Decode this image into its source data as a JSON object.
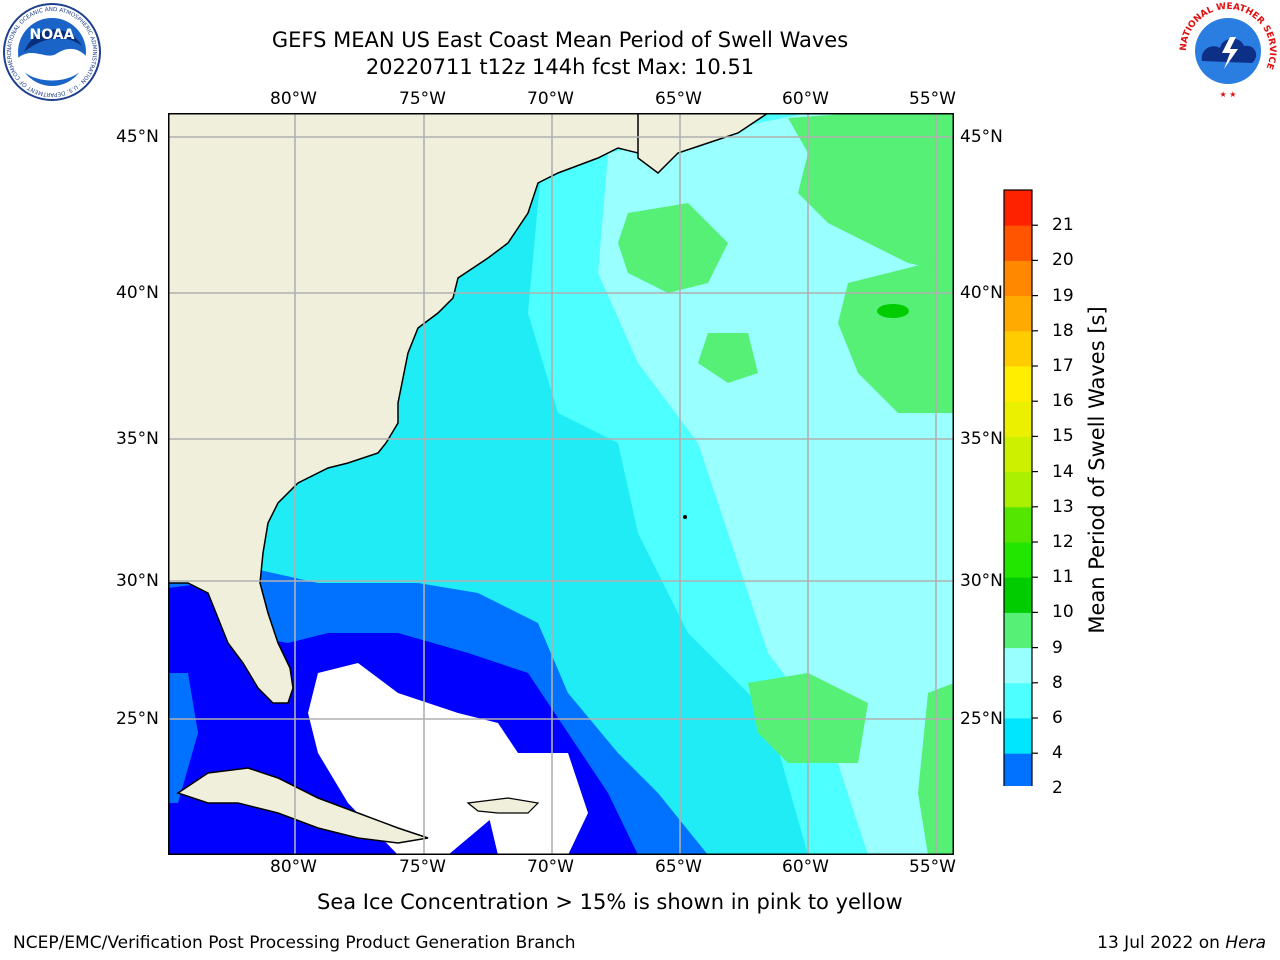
{
  "title": {
    "line1": "GEFS MEAN US East Coast Mean Period of Swell Waves",
    "line2": "20220711 t12z 144h fcst   Max: 10.51"
  },
  "logos": {
    "noaa_text": "NOAA",
    "noaa_ring": "NATIONAL OCEANIC AND ATMOSPHERIC ADMINISTRATION · U.S. DEPARTMENT OF COMMERCE",
    "nws_ring": "NATIONAL WEATHER SERVICE"
  },
  "map": {
    "lon_labels_top": [
      "80°W",
      "75°W",
      "70°W",
      "65°W",
      "60°W",
      "55°W"
    ],
    "lon_labels_bottom": [
      "80°W",
      "75°W",
      "70°W",
      "65°W",
      "60°W",
      "55°W"
    ],
    "lat_labels_left": [
      "45°N",
      "40°N",
      "35°N",
      "30°N",
      "25°N"
    ],
    "lat_labels_right": [
      "45°N",
      "40°N",
      "35°N",
      "30°N",
      "25°N"
    ],
    "extent": {
      "lon_min": -84.5,
      "lon_max": -54.4,
      "lat_min": 20.5,
      "lat_max": 46.0
    },
    "colors": {
      "land": "#efefdc",
      "grid": "#b0b0b0",
      "no_swell": "#ffffff"
    }
  },
  "colorbar": {
    "label": "Mean Period of Swell Waves [s]",
    "ticks": [
      "2",
      "4",
      "6",
      "8",
      "9",
      "10",
      "11",
      "12",
      "13",
      "14",
      "15",
      "16",
      "17",
      "18",
      "19",
      "20",
      "21"
    ],
    "colors": [
      "#0072ff",
      "#00e6ff",
      "#4dffff",
      "#99ffff",
      "#55f075",
      "#00cc00",
      "#22e600",
      "#55e600",
      "#aaf000",
      "#ccf000",
      "#eaf000",
      "#ffee00",
      "#ffcc00",
      "#ffaa00",
      "#ff8800",
      "#ff5500",
      "#ff2200",
      "#ff0000"
    ],
    "extend_color": "#0000ff"
  },
  "notes": {
    "sea_ice": "Sea Ice Concentration > 15% is shown in pink to yellow"
  },
  "footer": {
    "left": "NCEP/EMC/Verification Post Processing Product Generation Branch",
    "date": "13 Jul 2022 on ",
    "machine": "Hera"
  }
}
